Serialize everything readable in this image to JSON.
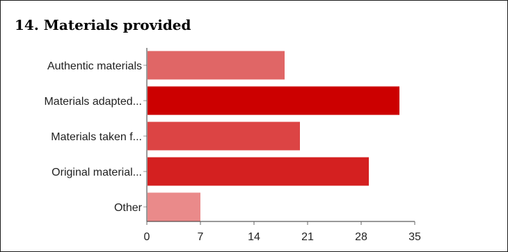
{
  "title": "14. Materials provided",
  "chart_data": {
    "type": "bar",
    "orientation": "horizontal",
    "title": "14. Materials provided",
    "categories": [
      "Authentic materials",
      "Materials adapted...",
      "Materials taken f...",
      "Original material...",
      "Other"
    ],
    "values": [
      18,
      33,
      20,
      29,
      7
    ],
    "colors": [
      "#e06666",
      "#cc0000",
      "#dc4444",
      "#d42020",
      "#ea8a8a"
    ],
    "x_ticks": [
      "0",
      "7",
      "14",
      "21",
      "28",
      "35"
    ],
    "xlim": [
      0,
      35
    ],
    "xlabel": "",
    "ylabel": "",
    "grid": false,
    "legend": "none"
  }
}
